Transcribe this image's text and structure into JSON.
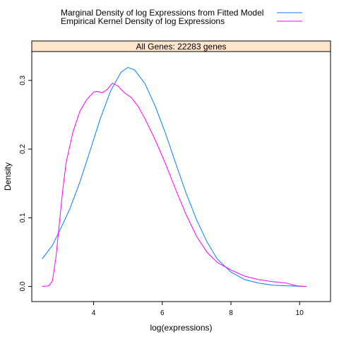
{
  "chart_data": {
    "type": "line",
    "title": "",
    "xlabel": "log(expressions)",
    "ylabel": "Density",
    "xlim": [
      2.2,
      10.9
    ],
    "ylim": [
      -0.022,
      0.342
    ],
    "x_ticks": [
      4,
      6,
      8,
      10
    ],
    "x_tick_labels": [
      "4",
      "6",
      "8",
      "10"
    ],
    "y_ticks": [
      0.0,
      0.1,
      0.2,
      0.3
    ],
    "y_tick_labels": [
      "0.0",
      "0.1",
      "0.2",
      "0.3"
    ],
    "grid": false,
    "legend_position": "top",
    "strip": {
      "label": "All Genes: 22283 genes",
      "color": "#ffe5cc"
    },
    "series": [
      {
        "name": "Marginal Density of log Expressions from Fitted Model",
        "color": "#0080ff",
        "x": [
          2.5,
          2.8,
          3.0,
          3.3,
          3.6,
          3.9,
          4.2,
          4.5,
          4.8,
          5.0,
          5.2,
          5.5,
          5.8,
          6.1,
          6.4,
          6.7,
          7.0,
          7.3,
          7.6,
          8.0,
          8.4,
          8.8,
          9.2,
          9.6,
          10.2
        ],
        "y": [
          0.04,
          0.06,
          0.08,
          0.112,
          0.152,
          0.198,
          0.245,
          0.285,
          0.312,
          0.319,
          0.315,
          0.295,
          0.262,
          0.222,
          0.178,
          0.135,
          0.097,
          0.065,
          0.04,
          0.021,
          0.01,
          0.005,
          0.002,
          0.001,
          0.0
        ]
      },
      {
        "name": "Empirical Kernel Density of log Expressions",
        "color": "#ff00ff",
        "x": [
          2.5,
          2.7,
          2.8,
          2.9,
          3.0,
          3.1,
          3.2,
          3.4,
          3.6,
          3.8,
          4.0,
          4.1,
          4.25,
          4.4,
          4.55,
          4.7,
          4.9,
          5.1,
          5.3,
          5.5,
          5.8,
          6.1,
          6.4,
          6.7,
          7.0,
          7.3,
          7.6,
          8.0,
          8.4,
          8.8,
          9.2,
          9.6,
          9.9,
          10.2
        ],
        "y": [
          0.0,
          0.001,
          0.008,
          0.04,
          0.09,
          0.14,
          0.18,
          0.225,
          0.255,
          0.272,
          0.283,
          0.284,
          0.282,
          0.287,
          0.296,
          0.292,
          0.282,
          0.275,
          0.262,
          0.244,
          0.213,
          0.178,
          0.14,
          0.104,
          0.073,
          0.05,
          0.035,
          0.024,
          0.015,
          0.01,
          0.007,
          0.005,
          0.001,
          0.0
        ]
      }
    ]
  }
}
